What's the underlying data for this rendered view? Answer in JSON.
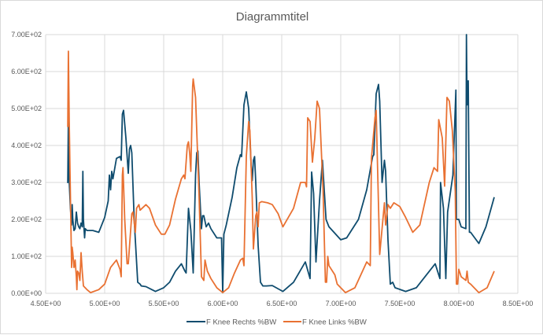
{
  "chart_data": {
    "type": "line",
    "title": "Diagrammtitel",
    "xlabel": "",
    "ylabel": "",
    "xlim": [
      4.5,
      8.5
    ],
    "ylim": [
      0,
      700
    ],
    "x_ticks": [
      4.5,
      5.0,
      5.5,
      6.0,
      6.5,
      7.0,
      7.5,
      8.0,
      8.5
    ],
    "x_tick_labels": [
      "4.50E+00",
      "5.00E+00",
      "5.50E+00",
      "6.00E+00",
      "6.50E+00",
      "7.00E+00",
      "7.50E+00",
      "8.00E+00",
      "8.50E+00"
    ],
    "y_ticks": [
      0,
      100,
      200,
      300,
      400,
      500,
      600,
      700
    ],
    "y_tick_labels": [
      "0.00E+00",
      "1.00E+02",
      "2.00E+02",
      "3.00E+02",
      "4.00E+02",
      "5.00E+02",
      "6.00E+02",
      "7.00E+02"
    ],
    "grid": true,
    "legend_position": "bottom",
    "series": [
      {
        "name": "F Knee Rechts %BW",
        "color": "#0F4C6E",
        "points": [
          [
            4.687,
            298
          ],
          [
            4.693,
            470
          ],
          [
            4.7,
            300
          ],
          [
            4.71,
            230
          ],
          [
            4.72,
            185
          ],
          [
            4.725,
            240
          ],
          [
            4.73,
            200
          ],
          [
            4.74,
            170
          ],
          [
            4.75,
            175
          ],
          [
            4.76,
            220
          ],
          [
            4.77,
            190
          ],
          [
            4.78,
            180
          ],
          [
            4.79,
            175
          ],
          [
            4.8,
            190
          ],
          [
            4.81,
            180
          ],
          [
            4.815,
            330
          ],
          [
            4.82,
            200
          ],
          [
            4.83,
            150
          ],
          [
            4.835,
            175
          ],
          [
            4.85,
            170
          ],
          [
            4.9,
            170
          ],
          [
            4.95,
            165
          ],
          [
            5.0,
            205
          ],
          [
            5.03,
            250
          ],
          [
            5.04,
            320
          ],
          [
            5.05,
            280
          ],
          [
            5.06,
            330
          ],
          [
            5.07,
            310
          ],
          [
            5.1,
            365
          ],
          [
            5.13,
            370
          ],
          [
            5.14,
            360
          ],
          [
            5.15,
            485
          ],
          [
            5.16,
            495
          ],
          [
            5.18,
            420
          ],
          [
            5.2,
            325
          ],
          [
            5.21,
            390
          ],
          [
            5.22,
            400
          ],
          [
            5.23,
            380
          ],
          [
            5.25,
            200
          ],
          [
            5.28,
            30
          ],
          [
            5.3,
            25
          ],
          [
            5.31,
            20
          ],
          [
            5.35,
            18
          ],
          [
            5.4,
            10
          ],
          [
            5.43,
            5
          ],
          [
            5.5,
            15
          ],
          [
            5.55,
            30
          ],
          [
            5.6,
            60
          ],
          [
            5.65,
            80
          ],
          [
            5.68,
            60
          ],
          [
            5.69,
            55
          ],
          [
            5.71,
            230
          ],
          [
            5.73,
            170
          ],
          [
            5.75,
            55
          ],
          [
            5.77,
            320
          ],
          [
            5.78,
            380
          ],
          [
            5.79,
            385
          ],
          [
            5.8,
            300
          ],
          [
            5.82,
            175
          ],
          [
            5.83,
            210
          ],
          [
            5.84,
            210
          ],
          [
            5.86,
            180
          ],
          [
            5.88,
            190
          ],
          [
            5.9,
            175
          ],
          [
            5.95,
            150
          ],
          [
            5.99,
            150
          ],
          [
            6.0,
            2
          ],
          [
            6.01,
            160
          ],
          [
            6.03,
            185
          ],
          [
            6.08,
            260
          ],
          [
            6.12,
            340
          ],
          [
            6.15,
            375
          ],
          [
            6.16,
            370
          ],
          [
            6.18,
            510
          ],
          [
            6.2,
            545
          ],
          [
            6.22,
            500
          ],
          [
            6.24,
            350
          ],
          [
            6.25,
            305
          ],
          [
            6.26,
            360
          ],
          [
            6.27,
            370
          ],
          [
            6.28,
            300
          ],
          [
            6.3,
            130
          ],
          [
            6.32,
            30
          ],
          [
            6.34,
            20
          ],
          [
            6.37,
            20
          ],
          [
            6.42,
            21
          ],
          [
            6.51,
            5
          ],
          [
            6.6,
            30
          ],
          [
            6.7,
            85
          ],
          [
            6.74,
            40
          ],
          [
            6.753,
            328
          ],
          [
            6.77,
            270
          ],
          [
            6.79,
            85
          ],
          [
            6.82,
            250
          ],
          [
            6.845,
            360
          ],
          [
            6.875,
            200
          ],
          [
            6.9,
            180
          ],
          [
            7.0,
            145
          ],
          [
            7.05,
            150
          ],
          [
            7.11,
            180
          ],
          [
            7.15,
            200
          ],
          [
            7.22,
            280
          ],
          [
            7.27,
            370
          ],
          [
            7.28,
            375
          ],
          [
            7.3,
            540
          ],
          [
            7.32,
            565
          ],
          [
            7.33,
            520
          ],
          [
            7.35,
            300
          ],
          [
            7.37,
            360
          ],
          [
            7.38,
            330
          ],
          [
            7.4,
            145
          ],
          [
            7.42,
            25
          ],
          [
            7.44,
            30
          ],
          [
            7.46,
            15
          ],
          [
            7.55,
            5
          ],
          [
            7.64,
            15
          ],
          [
            7.8,
            80
          ],
          [
            7.84,
            40
          ],
          [
            7.845,
            300
          ],
          [
            7.87,
            230
          ],
          [
            7.89,
            40
          ],
          [
            7.905,
            220
          ],
          [
            7.95,
            320
          ],
          [
            7.955,
            370
          ],
          [
            7.975,
            550
          ],
          [
            7.98,
            200
          ],
          [
            8.0,
            200
          ],
          [
            8.02,
            180
          ],
          [
            8.06,
            175
          ],
          [
            8.065,
            700
          ],
          [
            8.07,
            510
          ],
          [
            8.08,
            575
          ],
          [
            8.09,
            165
          ],
          [
            8.1,
            165
          ],
          [
            8.17,
            135
          ],
          [
            8.23,
            180
          ],
          [
            8.3,
            260
          ]
        ]
      },
      {
        "name": "F Knee Links %BW",
        "color": "#E97132",
        "points": [
          [
            4.687,
            450
          ],
          [
            4.693,
            655
          ],
          [
            4.7,
            460
          ],
          [
            4.71,
            260
          ],
          [
            4.72,
            70
          ],
          [
            4.725,
            125
          ],
          [
            4.73,
            110
          ],
          [
            4.74,
            70
          ],
          [
            4.75,
            90
          ],
          [
            4.76,
            45
          ],
          [
            4.765,
            10
          ],
          [
            4.77,
            60
          ],
          [
            4.78,
            55
          ],
          [
            4.79,
            35
          ],
          [
            4.8,
            110
          ],
          [
            4.81,
            60
          ],
          [
            4.82,
            20
          ],
          [
            4.85,
            10
          ],
          [
            4.88,
            2
          ],
          [
            4.95,
            10
          ],
          [
            5.0,
            25
          ],
          [
            5.05,
            70
          ],
          [
            5.1,
            90
          ],
          [
            5.13,
            65
          ],
          [
            5.14,
            45
          ],
          [
            5.15,
            320
          ],
          [
            5.155,
            340
          ],
          [
            5.17,
            200
          ],
          [
            5.19,
            80
          ],
          [
            5.2,
            80
          ],
          [
            5.23,
            215
          ],
          [
            5.24,
            220
          ],
          [
            5.26,
            165
          ],
          [
            5.27,
            230
          ],
          [
            5.29,
            240
          ],
          [
            5.3,
            225
          ],
          [
            5.35,
            240
          ],
          [
            5.38,
            230
          ],
          [
            5.43,
            185
          ],
          [
            5.48,
            160
          ],
          [
            5.51,
            160
          ],
          [
            5.55,
            185
          ],
          [
            5.6,
            255
          ],
          [
            5.65,
            310
          ],
          [
            5.67,
            320
          ],
          [
            5.68,
            310
          ],
          [
            5.7,
            400
          ],
          [
            5.71,
            410
          ],
          [
            5.72,
            380
          ],
          [
            5.73,
            330
          ],
          [
            5.745,
            560
          ],
          [
            5.75,
            580
          ],
          [
            5.77,
            530
          ],
          [
            5.8,
            260
          ],
          [
            5.82,
            45
          ],
          [
            5.84,
            35
          ],
          [
            5.85,
            90
          ],
          [
            5.87,
            60
          ],
          [
            5.9,
            40
          ],
          [
            5.95,
            15
          ],
          [
            6.0,
            2
          ],
          [
            6.05,
            15
          ],
          [
            6.1,
            55
          ],
          [
            6.15,
            90
          ],
          [
            6.17,
            95
          ],
          [
            6.18,
            75
          ],
          [
            6.2,
            370
          ],
          [
            6.22,
            465
          ],
          [
            6.23,
            440
          ],
          [
            6.25,
            260
          ],
          [
            6.26,
            120
          ],
          [
            6.28,
            210
          ],
          [
            6.29,
            220
          ],
          [
            6.3,
            180
          ],
          [
            6.31,
            245
          ],
          [
            6.33,
            248
          ],
          [
            6.38,
            245
          ],
          [
            6.42,
            240
          ],
          [
            6.47,
            215
          ],
          [
            6.51,
            180
          ],
          [
            6.6,
            230
          ],
          [
            6.66,
            300
          ],
          [
            6.7,
            300
          ],
          [
            6.71,
            288
          ],
          [
            6.72,
            475
          ],
          [
            6.74,
            465
          ],
          [
            6.76,
            355
          ],
          [
            6.78,
            420
          ],
          [
            6.8,
            520
          ],
          [
            6.82,
            500
          ],
          [
            6.85,
            280
          ],
          [
            6.87,
            30
          ],
          [
            6.88,
            30
          ],
          [
            6.89,
            100
          ],
          [
            6.9,
            75
          ],
          [
            6.95,
            50
          ],
          [
            6.97,
            25
          ],
          [
            7.04,
            2
          ],
          [
            7.12,
            15
          ],
          [
            7.22,
            85
          ],
          [
            7.25,
            75
          ],
          [
            7.26,
            365
          ],
          [
            7.29,
            475
          ],
          [
            7.3,
            495
          ],
          [
            7.31,
            365
          ],
          [
            7.33,
            105
          ],
          [
            7.37,
            245
          ],
          [
            7.38,
            185
          ],
          [
            7.4,
            240
          ],
          [
            7.42,
            230
          ],
          [
            7.45,
            245
          ],
          [
            7.5,
            235
          ],
          [
            7.55,
            205
          ],
          [
            7.61,
            165
          ],
          [
            7.67,
            185
          ],
          [
            7.75,
            300
          ],
          [
            7.79,
            340
          ],
          [
            7.82,
            330
          ],
          [
            7.83,
            470
          ],
          [
            7.86,
            420
          ],
          [
            7.88,
            290
          ],
          [
            7.9,
            530
          ],
          [
            7.92,
            520
          ],
          [
            7.945,
            440
          ],
          [
            7.97,
            275
          ],
          [
            7.98,
            25
          ],
          [
            7.99,
            25
          ],
          [
            8.0,
            65
          ],
          [
            8.02,
            45
          ],
          [
            8.06,
            35
          ],
          [
            8.07,
            60
          ],
          [
            8.08,
            30
          ],
          [
            8.1,
            25
          ],
          [
            8.17,
            2
          ],
          [
            8.24,
            15
          ],
          [
            8.3,
            60
          ]
        ]
      }
    ]
  }
}
